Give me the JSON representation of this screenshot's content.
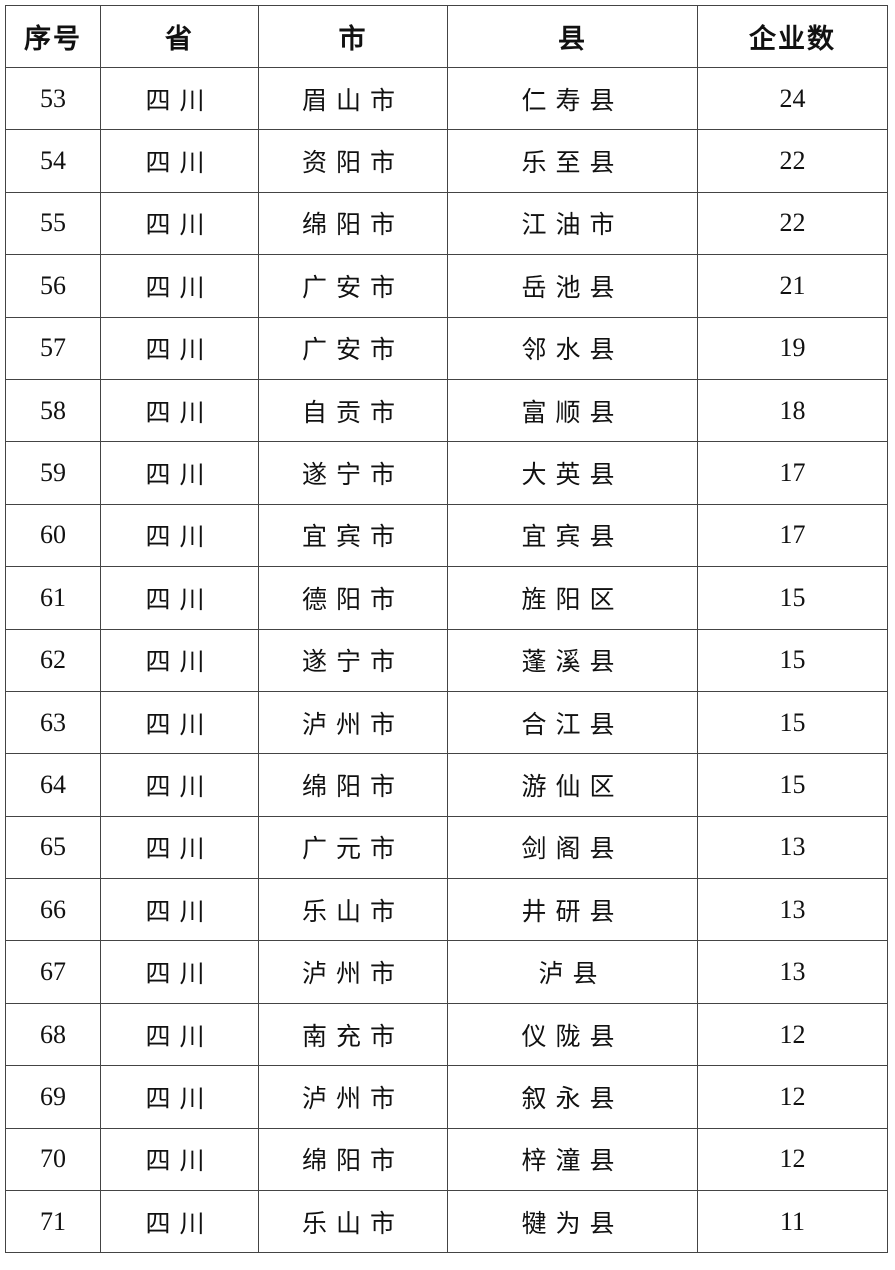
{
  "table": {
    "headers": [
      "序号",
      "省",
      "市",
      "县",
      "企业数"
    ],
    "rows": [
      [
        "53",
        "四川",
        "眉山市",
        "仁寿县",
        "24"
      ],
      [
        "54",
        "四川",
        "资阳市",
        "乐至县",
        "22"
      ],
      [
        "55",
        "四川",
        "绵阳市",
        "江油市",
        "22"
      ],
      [
        "56",
        "四川",
        "广安市",
        "岳池县",
        "21"
      ],
      [
        "57",
        "四川",
        "广安市",
        "邻水县",
        "19"
      ],
      [
        "58",
        "四川",
        "自贡市",
        "富顺县",
        "18"
      ],
      [
        "59",
        "四川",
        "遂宁市",
        "大英县",
        "17"
      ],
      [
        "60",
        "四川",
        "宜宾市",
        "宜宾县",
        "17"
      ],
      [
        "61",
        "四川",
        "德阳市",
        "旌阳区",
        "15"
      ],
      [
        "62",
        "四川",
        "遂宁市",
        "蓬溪县",
        "15"
      ],
      [
        "63",
        "四川",
        "泸州市",
        "合江县",
        "15"
      ],
      [
        "64",
        "四川",
        "绵阳市",
        "游仙区",
        "15"
      ],
      [
        "65",
        "四川",
        "广元市",
        "剑阁县",
        "13"
      ],
      [
        "66",
        "四川",
        "乐山市",
        "井研县",
        "13"
      ],
      [
        "67",
        "四川",
        "泸州市",
        "泸县",
        "13"
      ],
      [
        "68",
        "四川",
        "南充市",
        "仪陇县",
        "12"
      ],
      [
        "69",
        "四川",
        "泸州市",
        "叙永县",
        "12"
      ],
      [
        "70",
        "四川",
        "绵阳市",
        "梓潼县",
        "12"
      ],
      [
        "71",
        "四川",
        "乐山市",
        "犍为县",
        "11"
      ]
    ]
  }
}
